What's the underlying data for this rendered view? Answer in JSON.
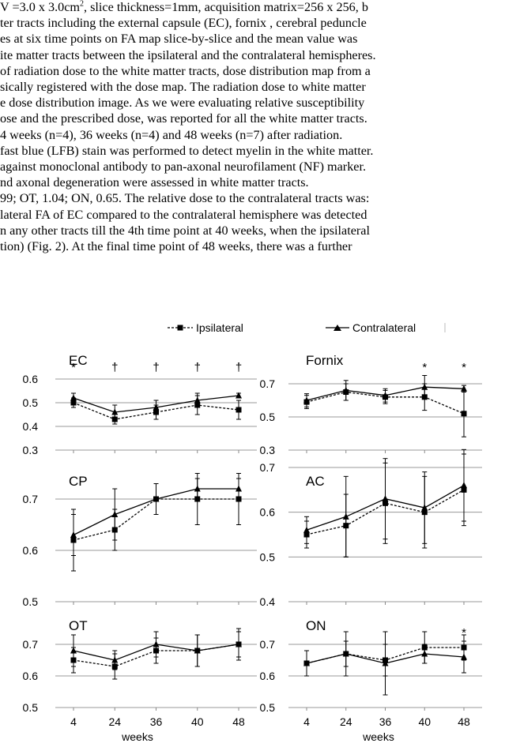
{
  "text_lines": [
    {
      "pre": "V =3.0 x 3.0cm",
      "sup": "2",
      "post": ", slice thickness=1mm, acquisition matrix=256 x 256, b"
    },
    {
      "pre": "ter tracts including the external capsule (EC), fornix , cerebral peduncle",
      "sup": "",
      "post": ""
    },
    {
      "pre": "es at six time points on FA map slice-by-slice and the mean value was",
      "sup": "",
      "post": ""
    },
    {
      "pre": "ite matter tracts between the ipsilateral and the contralateral hemispheres.",
      "sup": "",
      "post": ""
    },
    {
      "pre": " of radiation dose to the white matter tracts, dose distribution map from a",
      "sup": "",
      "post": ""
    },
    {
      "pre": "sically registered with the dose map. The radiation dose to white matter",
      "sup": "",
      "post": ""
    },
    {
      "pre": "e dose distribution image. As we were evaluating relative susceptibility",
      "sup": "",
      "post": ""
    },
    {
      "pre": "ose and the prescribed dose, was reported for all the white matter tracts.",
      "sup": "",
      "post": ""
    },
    {
      "pre": "4 weeks (n=4), 36 weeks (n=4) and 48 weeks (n=7) after radiation.",
      "sup": "",
      "post": ""
    },
    {
      "pre": "fast blue (LFB) stain was performed to detect myelin in the white matter.",
      "sup": "",
      "post": ""
    },
    {
      "pre": " against monoclonal antibody to pan-axonal neurofilament (NF) marker.",
      "sup": "",
      "post": ""
    },
    {
      "pre": "nd axonal degeneration were assessed in white matter tracts.",
      "sup": "",
      "post": ""
    },
    {
      "pre": "99; OT, 1.04; ON, 0.65. The relative dose to the contralateral tracts was:",
      "sup": "",
      "post": ""
    },
    {
      "pre": "lateral FA of EC compared to the contralateral hemisphere was detected",
      "sup": "",
      "post": ""
    },
    {
      "pre": "n any other tracts till the 4th time point at 40 weeks, when the ipsilateral",
      "sup": "",
      "post": ""
    },
    {
      "pre": "tion) (Fig. 2).  At the final time point of 48 weeks, there was a further",
      "sup": "",
      "post": ""
    }
  ],
  "legend": {
    "ipsilateral": "Ipsilateral",
    "contralateral": "Contralateral",
    "ipsilateral_color": "#000000",
    "contralateral_color": "#000000"
  },
  "xlabel": "weeks",
  "chart_data": [
    {
      "type": "line",
      "title": "EC",
      "x": [
        "4",
        "24",
        "36",
        "40",
        "48"
      ],
      "ylim": [
        0.3,
        0.6
      ],
      "yticks": [
        "0.3",
        "0.4",
        "0.5",
        "0.6"
      ],
      "series": [
        {
          "name": "Ipsilateral",
          "values": [
            0.5,
            0.43,
            0.46,
            0.49,
            0.47
          ],
          "err": [
            0.02,
            0.02,
            0.03,
            0.04,
            0.04
          ]
        },
        {
          "name": "Contralateral",
          "values": [
            0.52,
            0.46,
            0.48,
            0.51,
            0.53
          ],
          "err": [
            0.02,
            0.03,
            0.03,
            0.03,
            0.01
          ]
        }
      ],
      "annotations": [
        "*",
        "†",
        "†",
        "†",
        "†"
      ]
    },
    {
      "type": "line",
      "title": "Fornix",
      "x": [
        "4",
        "24",
        "36",
        "40",
        "48"
      ],
      "ylim": [
        0.3,
        0.7
      ],
      "yticks": [
        "0.3",
        "0.5",
        "0.7"
      ],
      "series": [
        {
          "name": "Ipsilateral",
          "values": [
            0.59,
            0.65,
            0.62,
            0.62,
            0.52
          ],
          "err": [
            0.04,
            0.05,
            0.04,
            0.08,
            0.14
          ]
        },
        {
          "name": "Contralateral",
          "values": [
            0.6,
            0.66,
            0.63,
            0.68,
            0.67
          ],
          "err": [
            0.04,
            0.06,
            0.04,
            0.07,
            0.02
          ]
        }
      ],
      "annotations": [
        "",
        "",
        "",
        "*",
        "*"
      ]
    },
    {
      "type": "line",
      "title": "CP",
      "x": [
        "4",
        "24",
        "36",
        "40",
        "48"
      ],
      "ylim": [
        0.5,
        0.7
      ],
      "yticks": [
        "0.5",
        "0.6",
        "0.7"
      ],
      "series": [
        {
          "name": "Ipsilateral",
          "values": [
            0.62,
            0.64,
            0.7,
            0.7,
            0.7
          ],
          "err": [
            0.06,
            0.04,
            0.03,
            0.05,
            0.05
          ]
        },
        {
          "name": "Contralateral",
          "values": [
            0.63,
            0.67,
            0.7,
            0.72,
            0.72
          ],
          "err": [
            0.04,
            0.05,
            0.03,
            0.02,
            0.02
          ]
        }
      ],
      "annotations": [
        "",
        "",
        "",
        "",
        ""
      ]
    },
    {
      "type": "line",
      "title": "AC",
      "x": [
        "4",
        "24",
        "36",
        "40",
        "48"
      ],
      "ylim": [
        0.4,
        0.7
      ],
      "yticks": [
        "0.4",
        "0.5",
        "0.6",
        "0.7"
      ],
      "series": [
        {
          "name": "Ipsilateral",
          "values": [
            0.55,
            0.57,
            0.62,
            0.6,
            0.65
          ],
          "err": [
            0.03,
            0.07,
            0.09,
            0.08,
            0.08
          ]
        },
        {
          "name": "Contralateral",
          "values": [
            0.56,
            0.59,
            0.63,
            0.61,
            0.66
          ],
          "err": [
            0.03,
            0.09,
            0.09,
            0.08,
            0.08
          ]
        }
      ],
      "annotations": [
        "",
        "",
        "",
        "",
        ""
      ]
    },
    {
      "type": "line",
      "title": "OT",
      "x": [
        "4",
        "24",
        "36",
        "40",
        "48"
      ],
      "ylim": [
        0.5,
        0.7
      ],
      "yticks": [
        "0.5",
        "0.6",
        "0.7"
      ],
      "series": [
        {
          "name": "Ipsilateral",
          "values": [
            0.65,
            0.63,
            0.68,
            0.68,
            0.7
          ],
          "err": [
            0.04,
            0.04,
            0.04,
            0.05,
            0.05
          ]
        },
        {
          "name": "Contralateral",
          "values": [
            0.68,
            0.65,
            0.7,
            0.68,
            0.7
          ],
          "err": [
            0.05,
            0.03,
            0.04,
            0.05,
            0.04
          ]
        }
      ],
      "annotations": [
        "",
        "",
        "",
        "",
        ""
      ]
    },
    {
      "type": "line",
      "title": "ON",
      "x": [
        "4",
        "24",
        "36",
        "40",
        "48"
      ],
      "ylim": [
        0.5,
        0.7
      ],
      "yticks": [
        "0.5",
        "0.6",
        "0.7"
      ],
      "series": [
        {
          "name": "Ipsilateral",
          "values": [
            0.64,
            0.67,
            0.65,
            0.69,
            0.69
          ],
          "err": [
            0.04,
            0.04,
            0.05,
            0.05,
            0.04
          ]
        },
        {
          "name": "Contralateral",
          "values": [
            0.64,
            0.67,
            0.64,
            0.67,
            0.66
          ],
          "err": [
            0.04,
            0.07,
            0.1,
            0.03,
            0.05
          ]
        }
      ],
      "annotations": [
        "",
        "",
        "",
        "",
        "*"
      ]
    }
  ]
}
